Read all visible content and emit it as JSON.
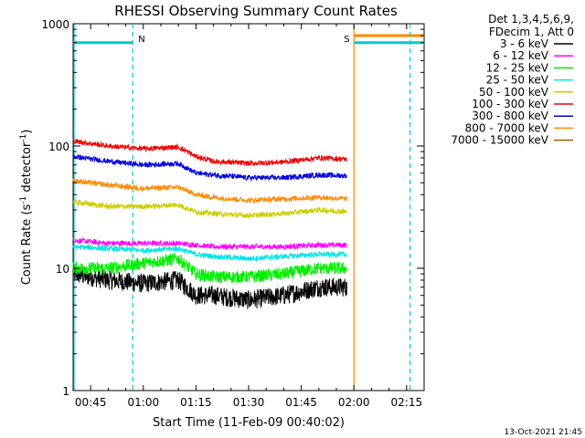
{
  "chart_data": {
    "type": "line",
    "title": "RHESSI Observing Summary Count Rates",
    "xlabel": "Start Time (11-Feb-09 00:40:02)",
    "ylabel_main": "Count Rate (s",
    "ylabel_sup1": "-1",
    "ylabel_mid": " detector",
    "ylabel_sup2": "-1",
    "ylabel_end": ")",
    "y_scale": "log",
    "ylim": [
      1,
      1000
    ],
    "xlim_minutes": [
      40,
      140
    ],
    "x_ticks": [
      {
        "label": "00:45",
        "minute": 45
      },
      {
        "label": "01:00",
        "minute": 60
      },
      {
        "label": "01:15",
        "minute": 75
      },
      {
        "label": "01:30",
        "minute": 90
      },
      {
        "label": "01:45",
        "minute": 105
      },
      {
        "label": "02:00",
        "minute": 120
      },
      {
        "label": "02:15",
        "minute": 135
      }
    ],
    "y_ticks": [
      {
        "label": "1",
        "value": 1
      },
      {
        "label": "10",
        "value": 10
      },
      {
        "label": "100",
        "value": 100
      },
      {
        "label": "1000",
        "value": 1000
      }
    ],
    "data_end_minute": 118,
    "legend_header": [
      "Det 1,3,4,5,6,9,",
      "FDecim 1, Att 0"
    ],
    "series": [
      {
        "name": "3 - 6 keV",
        "color": "#000000",
        "minutes": [
          40,
          50,
          60,
          70,
          75,
          80,
          90,
          100,
          110,
          118
        ],
        "values": [
          9,
          8,
          7.5,
          8,
          6,
          6,
          5.5,
          6,
          7,
          7
        ]
      },
      {
        "name": "6 - 12 keV",
        "color": "#ff00ff",
        "minutes": [
          40,
          50,
          60,
          70,
          75,
          80,
          90,
          100,
          110,
          118
        ],
        "values": [
          17,
          16,
          16,
          16,
          15.5,
          15,
          15,
          15,
          15.5,
          15.5
        ]
      },
      {
        "name": "12 - 25 keV",
        "color": "#00ee00",
        "minutes": [
          40,
          50,
          60,
          70,
          75,
          80,
          90,
          100,
          110,
          118
        ],
        "values": [
          10,
          10,
          11,
          12,
          9,
          8.5,
          8.5,
          9,
          10,
          10
        ]
      },
      {
        "name": "25 - 50 keV",
        "color": "#00e5e5",
        "minutes": [
          40,
          50,
          60,
          70,
          75,
          80,
          90,
          100,
          110,
          118
        ],
        "values": [
          15,
          14.5,
          14,
          14.5,
          13,
          12.5,
          12,
          12.5,
          13,
          13
        ]
      },
      {
        "name": "50 - 100 keV",
        "color": "#cccc00",
        "minutes": [
          40,
          50,
          60,
          70,
          75,
          80,
          90,
          100,
          110,
          118
        ],
        "values": [
          35,
          32,
          32,
          33,
          29,
          28,
          27,
          28,
          30,
          29
        ]
      },
      {
        "name": "100 - 300 keV",
        "color": "#ee0000",
        "minutes": [
          40,
          50,
          60,
          70,
          75,
          80,
          90,
          100,
          110,
          118
        ],
        "values": [
          110,
          100,
          95,
          98,
          82,
          75,
          72,
          74,
          80,
          78
        ]
      },
      {
        "name": "300 - 800 keV",
        "color": "#0000dd",
        "minutes": [
          40,
          50,
          60,
          70,
          75,
          80,
          90,
          100,
          110,
          118
        ],
        "values": [
          82,
          75,
          70,
          72,
          60,
          58,
          55,
          55,
          58,
          57
        ]
      },
      {
        "name": "800 - 7000 keV",
        "color": "#ff8800",
        "minutes": [
          40,
          50,
          60,
          70,
          75,
          80,
          90,
          100,
          110,
          118
        ],
        "values": [
          52,
          48,
          45,
          46,
          40,
          38,
          36,
          37,
          38,
          37
        ]
      },
      {
        "name": "7000 - 15000 keV",
        "color": "#996600",
        "minutes": [],
        "values": []
      }
    ],
    "markers": [
      {
        "label": "N",
        "minute": 57,
        "color": "#00cccc",
        "style": "dashed",
        "level": 700,
        "bar_from": 40,
        "bar_to": 57
      },
      {
        "label": "S",
        "minute": 120,
        "color": "#ff8800",
        "style": "solid",
        "level": 800,
        "bar_from": 120,
        "bar_to": 140
      },
      {
        "label": "",
        "minute": 136,
        "color": "#00cccc",
        "style": "dashed",
        "level": 700,
        "bar_from": 120,
        "bar_to": 140
      }
    ],
    "grid": false,
    "legend_position": "right"
  },
  "footer": {
    "timestamp": "13-Oct-2021 21:45"
  }
}
